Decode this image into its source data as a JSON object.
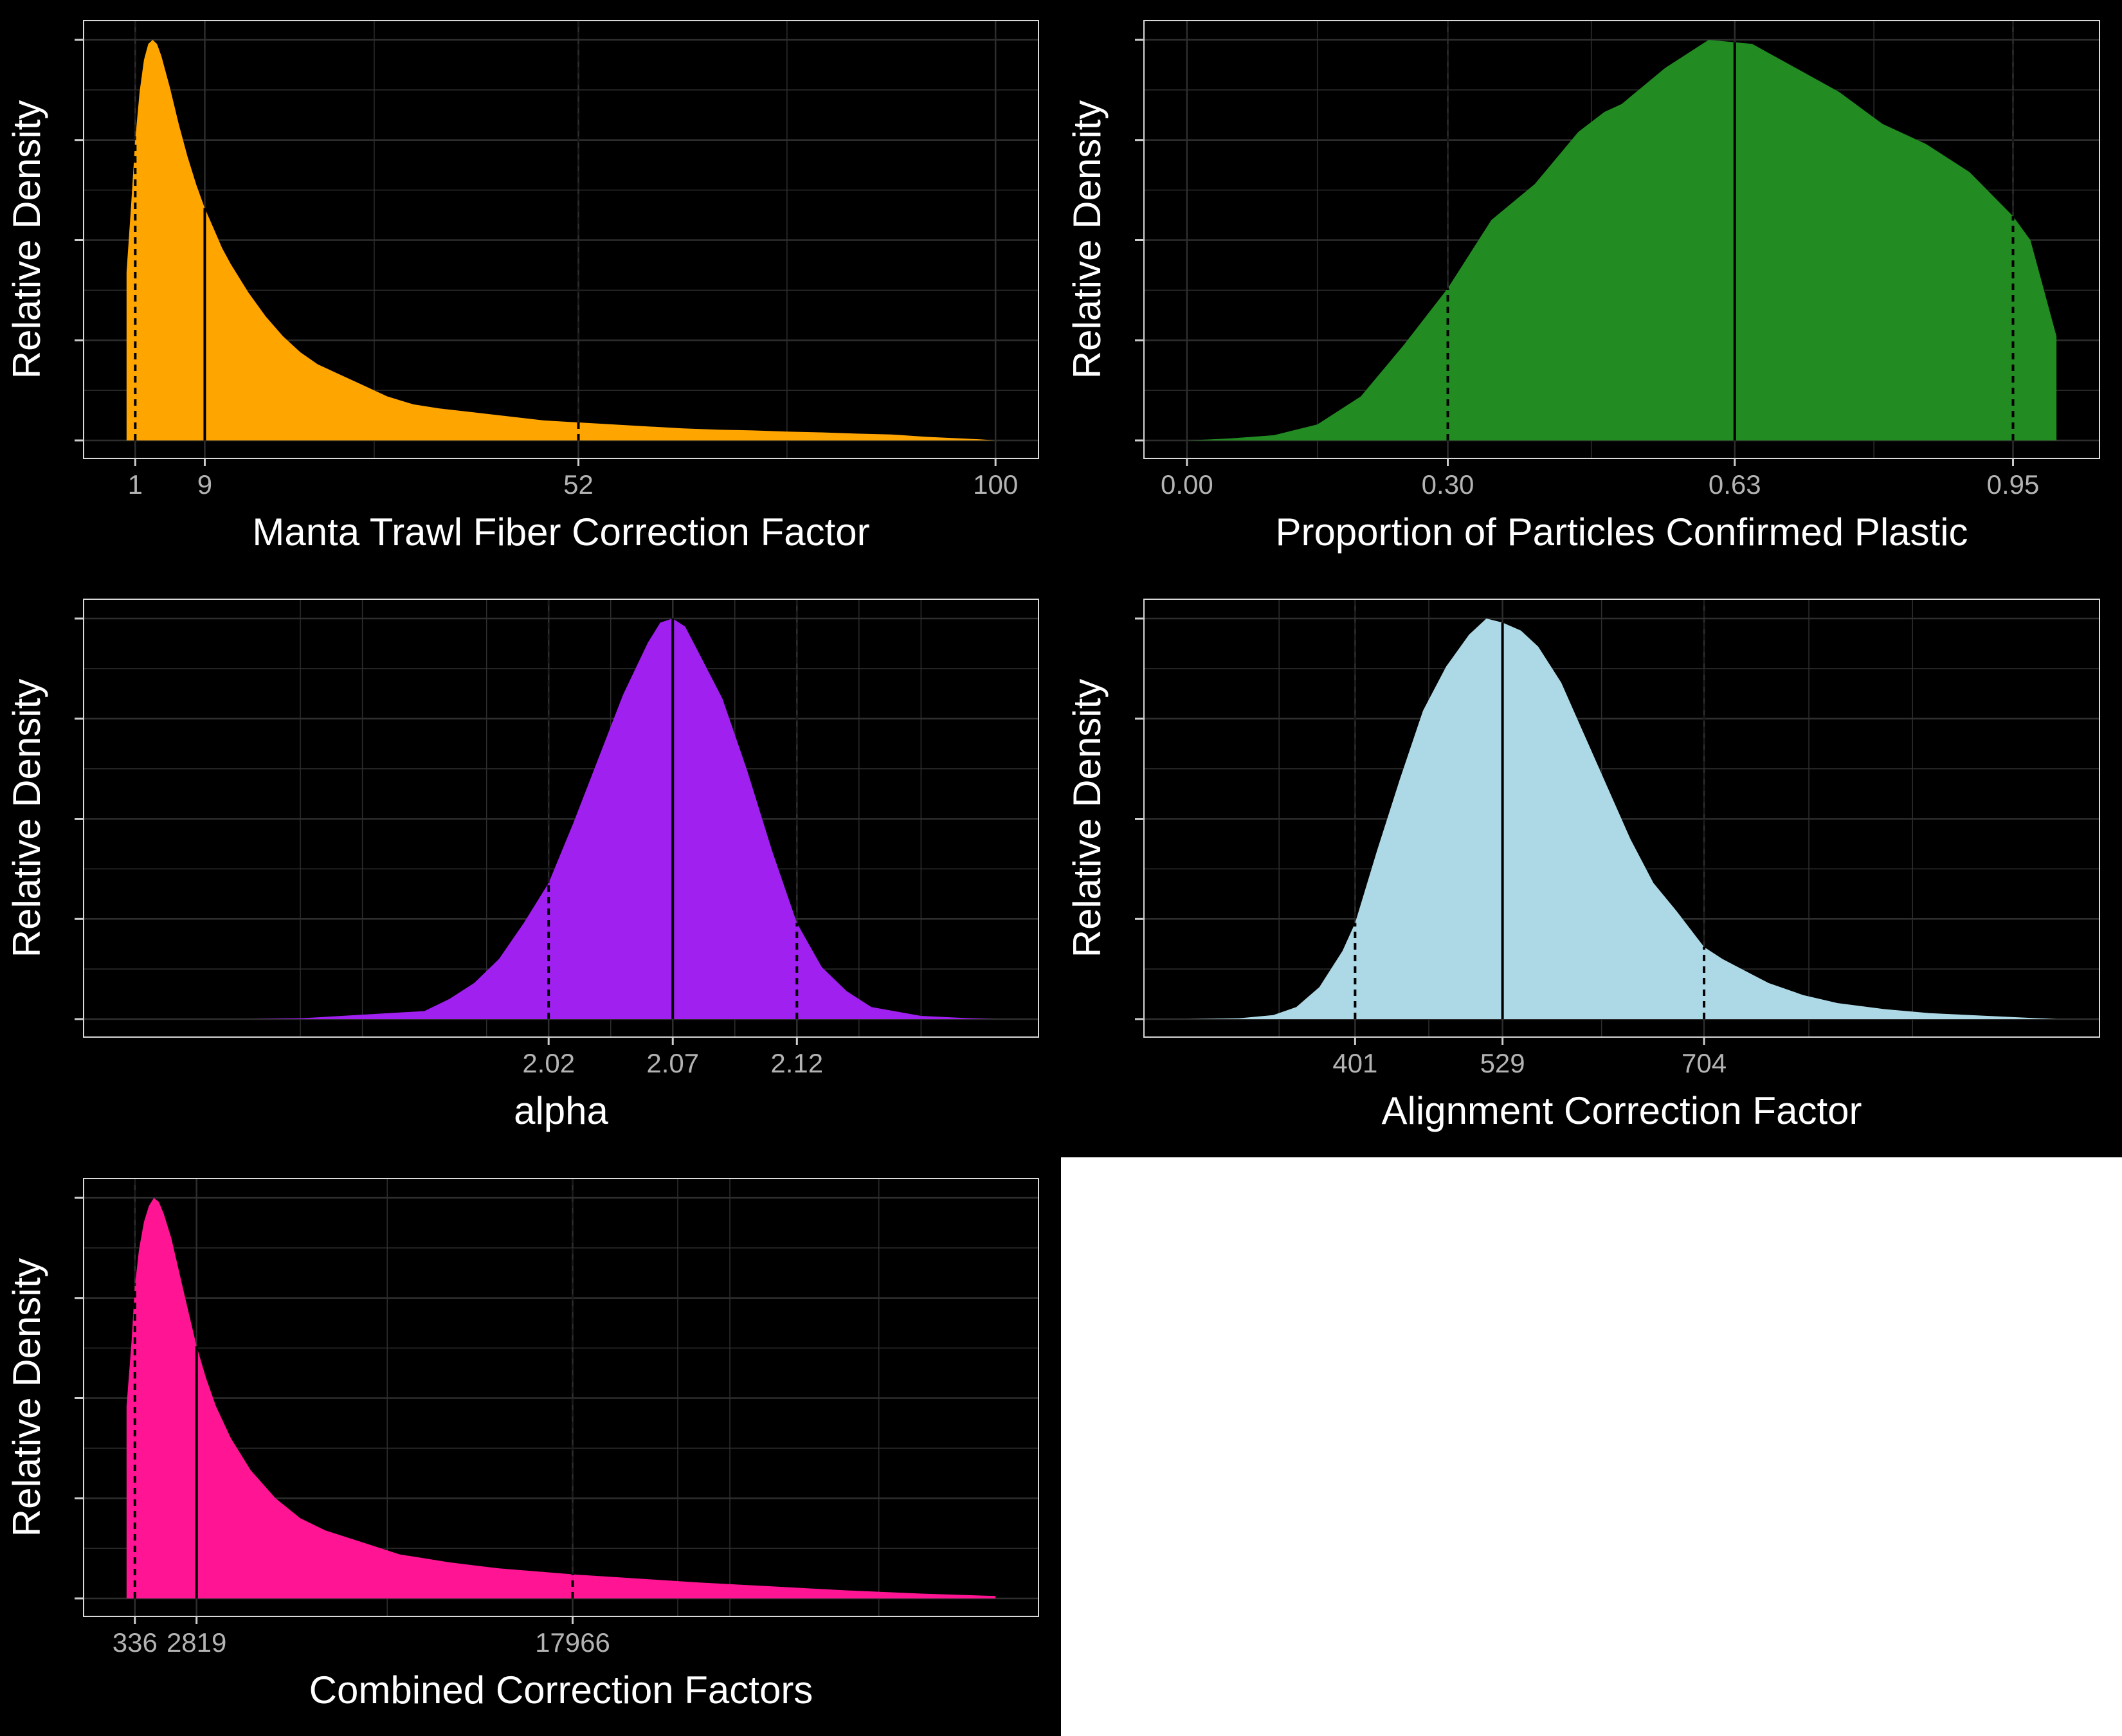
{
  "colors": {
    "figure_bg": "#000000",
    "panel_border": "#d9d9d9",
    "grid": "#2e2e2e",
    "text": "#ffffff",
    "tick_text": "#b3b3b3",
    "ref_line": "#000000"
  },
  "chart_data": [
    {
      "type": "area",
      "xlabel": "Manta Trawl Fiber Correction Factor",
      "ylabel": "Relative Density",
      "fill": "#FFA500",
      "xlim": [
        0,
        100
      ],
      "xticks": [
        1,
        9,
        52,
        100
      ],
      "xtick_labels": [
        "1",
        "9",
        "52",
        "100"
      ],
      "minor_grid_x": [
        28.5,
        76
      ],
      "lines": {
        "median": 9,
        "lower": 1,
        "upper": 52
      },
      "density": {
        "x": [
          0,
          0.5,
          1,
          1.5,
          2,
          2.5,
          3,
          3.5,
          4,
          5,
          6,
          7,
          8,
          9,
          10,
          11,
          12,
          14,
          16,
          18,
          20,
          22,
          24,
          27,
          30,
          33,
          36,
          40,
          44,
          48,
          52,
          56,
          60,
          64,
          68,
          72,
          76,
          80,
          84,
          88,
          90,
          92,
          95,
          98,
          100
        ],
        "y": [
          0.42,
          0.58,
          0.75,
          0.87,
          0.95,
          0.99,
          1.0,
          0.99,
          0.96,
          0.88,
          0.79,
          0.71,
          0.64,
          0.58,
          0.53,
          0.48,
          0.44,
          0.37,
          0.31,
          0.26,
          0.22,
          0.19,
          0.17,
          0.14,
          0.11,
          0.09,
          0.08,
          0.07,
          0.06,
          0.05,
          0.045,
          0.04,
          0.035,
          0.03,
          0.027,
          0.025,
          0.022,
          0.02,
          0.017,
          0.015,
          0.012,
          0.009,
          0.006,
          0.003,
          0.0
        ]
      }
    },
    {
      "type": "area",
      "xlabel": "Proportion of Particles Confirmed Plastic",
      "ylabel": "Relative Density",
      "fill": "#228B22",
      "xlim": [
        0,
        1
      ],
      "xticks": [
        0.0,
        0.3,
        0.63,
        0.95
      ],
      "xtick_labels": [
        "0.00",
        "0.30",
        "0.63",
        "0.95"
      ],
      "minor_grid_x": [
        0.15,
        0.465,
        0.79
      ],
      "lines": {
        "median": 0.63,
        "lower": 0.3,
        "upper": 0.95
      },
      "density": {
        "x": [
          0,
          0.05,
          0.1,
          0.15,
          0.2,
          0.25,
          0.3,
          0.35,
          0.4,
          0.45,
          0.48,
          0.5,
          0.55,
          0.6,
          0.65,
          0.7,
          0.75,
          0.8,
          0.85,
          0.9,
          0.95,
          0.97,
          1.0
        ],
        "y": [
          0.0,
          0.005,
          0.013,
          0.04,
          0.11,
          0.24,
          0.38,
          0.55,
          0.64,
          0.77,
          0.82,
          0.84,
          0.93,
          1.0,
          0.99,
          0.93,
          0.87,
          0.79,
          0.74,
          0.67,
          0.56,
          0.5,
          0.26
        ]
      }
    },
    {
      "type": "area",
      "xlabel": "alpha",
      "ylabel": "Relative Density",
      "fill": "#A020F0",
      "xlim": [
        1.85,
        2.2
      ],
      "xticks": [
        2.02,
        2.07,
        2.12
      ],
      "xtick_labels": [
        "2.02",
        "2.07",
        "2.12"
      ],
      "minor_grid_x": [
        1.92,
        1.945,
        1.995,
        2.045,
        2.095,
        2.145,
        2.17
      ],
      "lines": {
        "median": 2.07,
        "lower": 2.02,
        "upper": 2.12
      },
      "density": {
        "x": [
          1.85,
          1.9,
          1.92,
          1.97,
          1.98,
          1.99,
          2.0,
          2.01,
          2.02,
          2.03,
          2.04,
          2.05,
          2.06,
          2.065,
          2.07,
          2.075,
          2.08,
          2.09,
          2.1,
          2.11,
          2.12,
          2.13,
          2.14,
          2.15,
          2.17,
          2.19,
          2.2
        ],
        "y": [
          0.0,
          0.0,
          0.002,
          0.02,
          0.05,
          0.09,
          0.15,
          0.24,
          0.34,
          0.49,
          0.65,
          0.81,
          0.94,
          0.99,
          1.0,
          0.98,
          0.92,
          0.8,
          0.62,
          0.42,
          0.24,
          0.13,
          0.07,
          0.03,
          0.008,
          0.002,
          0.0
        ]
      }
    },
    {
      "type": "area",
      "xlabel": "Alignment Correction Factor",
      "ylabel": "Relative Density",
      "fill": "#ADD8E6",
      "xlim": [
        255,
        1010
      ],
      "xticks": [
        401,
        529,
        704
      ],
      "xtick_labels": [
        "401",
        "529",
        "704"
      ],
      "minor_grid_x": [
        335,
        465,
        615,
        795,
        885
      ],
      "lines": {
        "median": 529,
        "lower": 401,
        "upper": 704
      },
      "density": {
        "x": [
          255,
          300,
          330,
          350,
          370,
          390,
          401,
          420,
          440,
          460,
          480,
          500,
          515,
          529,
          545,
          560,
          580,
          600,
          620,
          640,
          660,
          680,
          704,
          720,
          740,
          760,
          790,
          820,
          860,
          900,
          950,
          980,
          1010
        ],
        "y": [
          0.0,
          0.002,
          0.01,
          0.03,
          0.08,
          0.17,
          0.24,
          0.42,
          0.6,
          0.77,
          0.88,
          0.96,
          1.0,
          0.99,
          0.97,
          0.93,
          0.84,
          0.71,
          0.58,
          0.45,
          0.34,
          0.27,
          0.18,
          0.15,
          0.12,
          0.09,
          0.06,
          0.04,
          0.025,
          0.015,
          0.008,
          0.004,
          0.0
        ]
      }
    },
    {
      "type": "area",
      "xlabel": "Combined Correction Factors",
      "ylabel": "Relative Density",
      "fill": "#FF1493",
      "xlim": [
        0,
        35000
      ],
      "xticks": [
        336,
        2819,
        17966
      ],
      "xtick_labels": [
        "336",
        "2819",
        "17966"
      ],
      "minor_grid_x": [
        10500,
        22200,
        24300,
        30300
      ],
      "lines": {
        "median": 2819,
        "lower": 336,
        "upper": 17966
      },
      "density": {
        "x": [
          0,
          200,
          336,
          500,
          700,
          900,
          1100,
          1300,
          1500,
          1800,
          2100,
          2400,
          2819,
          3200,
          3600,
          4200,
          5000,
          6000,
          7000,
          8000,
          9500,
          11000,
          13000,
          15000,
          17966,
          20000,
          23000,
          26000,
          29000,
          32000,
          35000
        ],
        "y": [
          0.48,
          0.64,
          0.78,
          0.87,
          0.94,
          0.98,
          1.0,
          0.99,
          0.96,
          0.9,
          0.82,
          0.74,
          0.63,
          0.55,
          0.48,
          0.4,
          0.32,
          0.25,
          0.2,
          0.17,
          0.14,
          0.11,
          0.09,
          0.075,
          0.06,
          0.052,
          0.04,
          0.03,
          0.02,
          0.012,
          0.006
        ]
      }
    }
  ]
}
